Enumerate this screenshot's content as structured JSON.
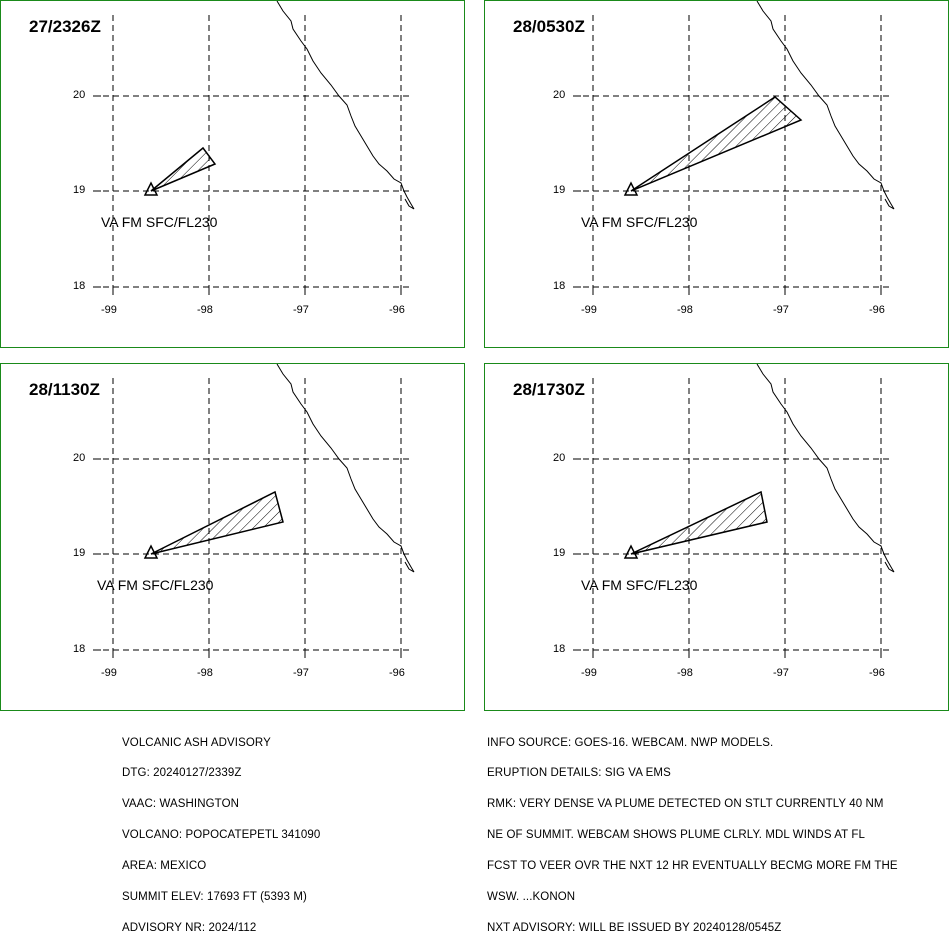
{
  "panels": [
    {
      "time": "27/2326Z",
      "va_label": "VA FM SFC/FL230"
    },
    {
      "time": "28/0530Z",
      "va_label": "VA FM SFC/FL230"
    },
    {
      "time": "28/1130Z",
      "va_label": "VA FM SFC/FL230"
    },
    {
      "time": "28/1730Z",
      "va_label": "VA FM SFC/FL230"
    }
  ],
  "axes": {
    "lat_labels": [
      "20",
      "19",
      "18"
    ],
    "lon_labels": [
      "-99",
      "-98",
      "-97",
      "-96"
    ]
  },
  "colors": {
    "border": "#1a8a1a",
    "lines": "#000000"
  },
  "advisory_left": {
    "title": "VOLCANIC ASH ADVISORY",
    "dtg": "DTG: 20240127/2339Z",
    "vaac": "VAAC: WASHINGTON",
    "volcano": "VOLCANO: POPOCATEPETL 341090",
    "area": "AREA: MEXICO",
    "summit": "SUMMIT ELEV: 17693 FT (5393 M)",
    "advisory_nr": "ADVISORY NR: 2024/112"
  },
  "advisory_right": {
    "info_source": "INFO SOURCE: GOES-16. WEBCAM. NWP MODELS.",
    "eruption": "ERUPTION DETAILS: SIG VA EMS",
    "rmk1": "RMK: VERY DENSE VA PLUME DETECTED ON STLT CURRENTLY 40 NM",
    "rmk2": "NE OF SUMMIT. WEBCAM SHOWS PLUME CLRLY. MDL WINDS AT FL",
    "rmk3": "FCST TO VEER OVR THE NXT 12 HR EVENTUALLY BECMG MORE FM THE",
    "rmk4": "WSW. ...KONON",
    "nxt": "NXT ADVISORY: WILL BE ISSUED BY 20240128/0545Z"
  }
}
